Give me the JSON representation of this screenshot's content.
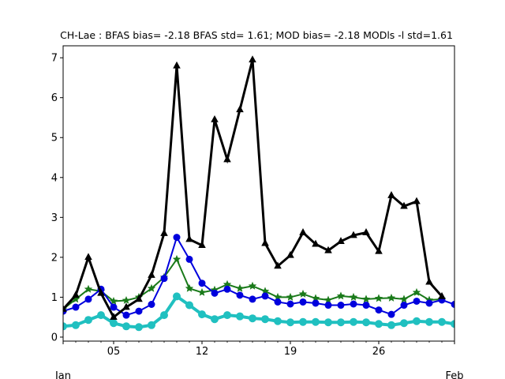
{
  "chart_data": {
    "type": "line",
    "title": "CH-Lae   : BFAS bias= -2.18 BFAS std= 1.61; MOD bias= -2.18 MODls -l std=1.61",
    "xlabel": "",
    "ylabel": "",
    "x": [
      "Jan 01",
      "Jan 02",
      "Jan 03",
      "Jan 04",
      "Jan 05",
      "Jan 06",
      "Jan 07",
      "Jan 08",
      "Jan 09",
      "Jan 10",
      "Jan 11",
      "Jan 12",
      "Jan 13",
      "Jan 14",
      "Jan 15",
      "Jan 16",
      "Jan 17",
      "Jan 18",
      "Jan 19",
      "Jan 20",
      "Jan 21",
      "Jan 22",
      "Jan 23",
      "Jan 24",
      "Jan 25",
      "Jan 26",
      "Jan 27",
      "Jan 28",
      "Jan 29",
      "Jan 30",
      "Jan 31",
      "Feb 01"
    ],
    "xlim": [
      "Jan 01",
      "Feb 01"
    ],
    "ylim": [
      -0.1,
      7.3
    ],
    "x_ticks": [
      {
        "date": "Jan 05",
        "label": "05"
      },
      {
        "date": "Jan 12",
        "label": "12"
      },
      {
        "date": "Jan 19",
        "label": "19"
      },
      {
        "date": "Jan 26",
        "label": "26"
      }
    ],
    "x_secondary_labels": [
      {
        "date": "Jan 01",
        "label": "Jan"
      },
      {
        "date": "Feb 01",
        "label": "Feb"
      }
    ],
    "y_ticks": [
      0,
      1,
      2,
      3,
      4,
      5,
      6,
      7
    ],
    "grid": false,
    "series": [
      {
        "color": "#000000",
        "marker": "triangle",
        "linewidth": 3,
        "values": [
          0.7,
          1.05,
          2.0,
          1.1,
          0.5,
          0.75,
          0.95,
          1.55,
          2.6,
          6.8,
          2.45,
          2.3,
          5.45,
          4.45,
          5.7,
          6.95,
          2.35,
          1.78,
          2.05,
          2.62,
          2.33,
          2.17,
          2.4,
          2.55,
          2.62,
          2.15,
          3.55,
          3.28,
          3.4,
          1.38,
          1.02,
          null
        ]
      },
      {
        "color": "#0000dd",
        "marker": "circle",
        "linewidth": 2,
        "values": [
          0.65,
          0.75,
          0.95,
          1.2,
          0.75,
          0.55,
          0.65,
          0.82,
          1.47,
          2.5,
          1.95,
          1.35,
          1.1,
          1.2,
          1.05,
          0.95,
          1.03,
          0.88,
          0.83,
          0.88,
          0.85,
          0.8,
          0.8,
          0.83,
          0.8,
          0.68,
          0.57,
          0.8,
          0.9,
          0.85,
          0.93,
          0.82
        ]
      },
      {
        "color": "#1a7a1a",
        "marker": "star",
        "linewidth": 2,
        "values": [
          0.7,
          0.95,
          1.2,
          1.15,
          0.9,
          0.92,
          1.0,
          1.22,
          1.5,
          1.95,
          1.22,
          1.12,
          1.18,
          1.32,
          1.22,
          1.28,
          1.15,
          1.0,
          1.0,
          1.08,
          0.97,
          0.93,
          1.03,
          1.0,
          0.95,
          0.97,
          0.98,
          0.95,
          1.12,
          0.93,
          0.95,
          null
        ]
      },
      {
        "color": "#20c0c0",
        "marker": "circle",
        "linewidth": 4,
        "values": [
          0.27,
          0.3,
          0.43,
          0.55,
          0.35,
          0.27,
          0.25,
          0.3,
          0.55,
          1.02,
          0.8,
          0.57,
          0.45,
          0.55,
          0.52,
          0.47,
          0.45,
          0.4,
          0.37,
          0.38,
          0.38,
          0.37,
          0.37,
          0.38,
          0.37,
          0.33,
          0.3,
          0.35,
          0.4,
          0.38,
          0.38,
          0.33
        ]
      }
    ]
  }
}
